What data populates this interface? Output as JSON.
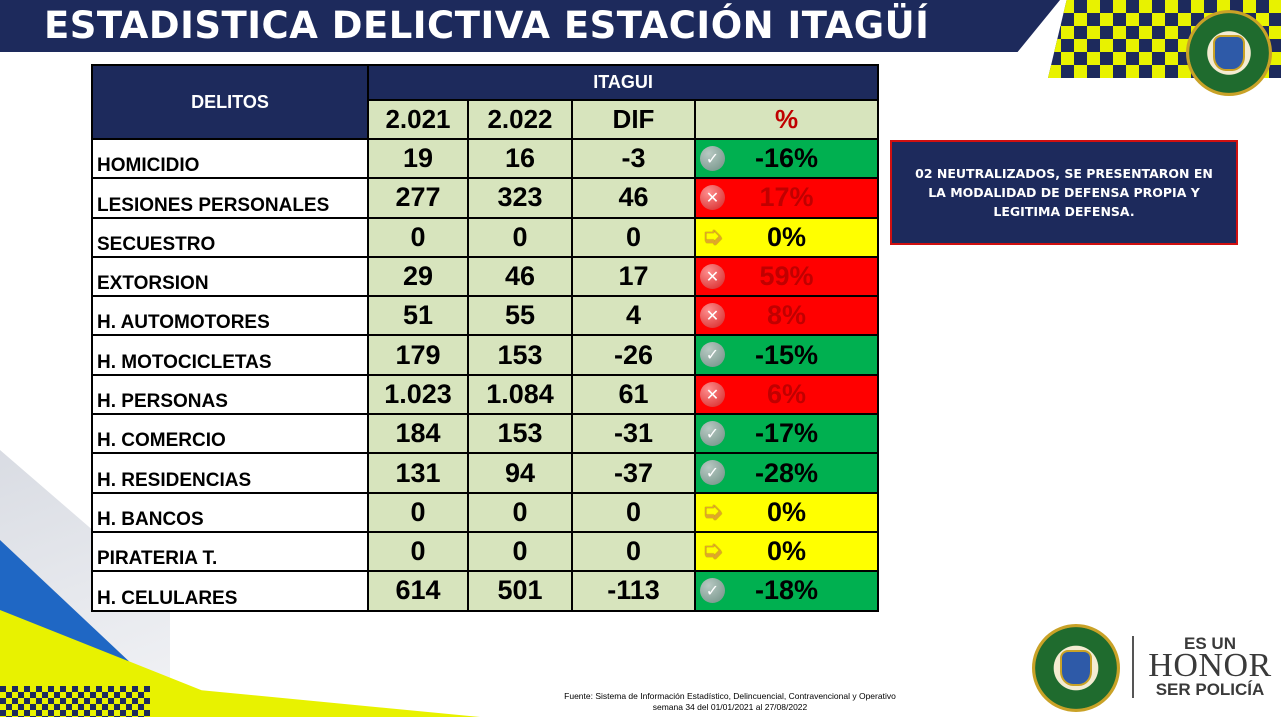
{
  "header": {
    "title": "ESTADISTICA DELICTIVA ESTACIÓN ITAGÜÍ"
  },
  "table": {
    "col_delitos": "DELITOS",
    "group": "ITAGUI",
    "col_2021": "2.021",
    "col_2022": "2.022",
    "col_dif": "DIF",
    "col_pct": "%",
    "rows": [
      {
        "name": "HOMICIDIO",
        "y2021": "19",
        "y2022": "16",
        "dif": "-3",
        "pct": "-16%",
        "status": "good",
        "icon": "check-icon"
      },
      {
        "name": "LESIONES PERSONALES",
        "y2021": "277",
        "y2022": "323",
        "dif": "46",
        "pct": "17%",
        "status": "bad",
        "icon": "x-icon"
      },
      {
        "name": "SECUESTRO",
        "y2021": "0",
        "y2022": "0",
        "dif": "0",
        "pct": "0%",
        "status": "neutral",
        "icon": "arrow-right-icon"
      },
      {
        "name": "EXTORSION",
        "y2021": "29",
        "y2022": "46",
        "dif": "17",
        "pct": "59%",
        "status": "bad",
        "icon": "x-icon"
      },
      {
        "name": "H. AUTOMOTORES",
        "y2021": "51",
        "y2022": "55",
        "dif": "4",
        "pct": "8%",
        "status": "bad",
        "icon": "x-icon"
      },
      {
        "name": "H. MOTOCICLETAS",
        "y2021": "179",
        "y2022": "153",
        "dif": "-26",
        "pct": "-15%",
        "status": "good",
        "icon": "check-icon"
      },
      {
        "name": "H. PERSONAS",
        "y2021": "1.023",
        "y2022": "1.084",
        "dif": "61",
        "pct": "6%",
        "status": "bad",
        "icon": "x-icon"
      },
      {
        "name": "H. COMERCIO",
        "y2021": "184",
        "y2022": "153",
        "dif": "-31",
        "pct": "-17%",
        "status": "good",
        "icon": "check-icon"
      },
      {
        "name": "H. RESIDENCIAS",
        "y2021": "131",
        "y2022": "94",
        "dif": "-37",
        "pct": "-28%",
        "status": "good",
        "icon": "check-icon"
      },
      {
        "name": "H. BANCOS",
        "y2021": "0",
        "y2022": "0",
        "dif": "0",
        "pct": "0%",
        "status": "neutral",
        "icon": "arrow-right-icon"
      },
      {
        "name": "PIRATERIA T.",
        "y2021": "0",
        "y2022": "0",
        "dif": "0",
        "pct": "0%",
        "status": "neutral",
        "icon": "arrow-right-icon"
      },
      {
        "name": "H. CELULARES",
        "y2021": "614",
        "y2022": "501",
        "dif": "-113",
        "pct": "-18%",
        "status": "good",
        "icon": "check-icon"
      }
    ]
  },
  "note": {
    "text": "02 NEUTRALIZADOS, SE PRESENTARON EN LA MODALIDAD DE DEFENSA PROPIA Y LEGITIMA DEFENSA."
  },
  "source": {
    "line1": "Fuente: Sistema de Información Estadístico, Delincuencial, Contravencional y Operativo",
    "line2": "semana 34 del 01/01/2021 al 27/08/2022"
  },
  "slogan": {
    "line1": "ES UN",
    "line2": "HONOR",
    "line3": "SER POLICÍA"
  },
  "colors": {
    "navy": "#1d2a5c",
    "accent_yellow": "#e8f200",
    "cell_green_light": "#d7e4bd",
    "status_good": "#00b050",
    "status_bad": "#ff0000",
    "status_neutral": "#ffff00",
    "pct_header_red": "#c00000"
  }
}
